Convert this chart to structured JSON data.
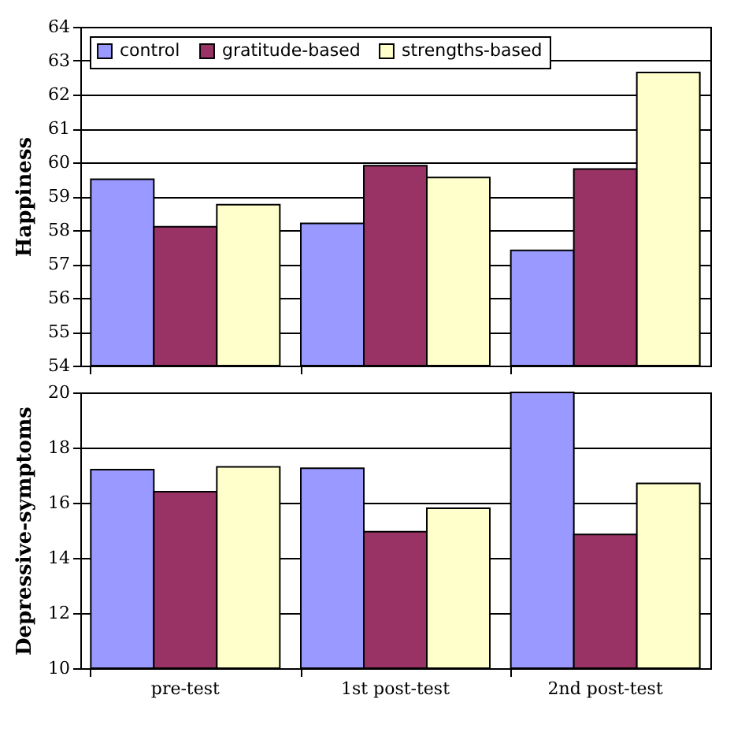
{
  "chart_data": [
    {
      "type": "bar",
      "ylabel": "Happiness",
      "categories": [
        null,
        null,
        null
      ],
      "series": [
        {
          "name": "control",
          "color": "#9999ff",
          "values": [
            59.5,
            58.2,
            57.4
          ]
        },
        {
          "name": "gratitude-based",
          "color": "#993366",
          "values": [
            58.1,
            59.9,
            59.8
          ]
        },
        {
          "name": "strengths-based",
          "color": "#ffffcc",
          "values": [
            58.75,
            59.55,
            62.65
          ]
        }
      ],
      "ylim": [
        54,
        64
      ],
      "yticks": [
        54,
        55,
        56,
        57,
        58,
        59,
        60,
        61,
        62,
        63,
        64
      ],
      "grid": "y",
      "legend": "top left",
      "tick_labels": "y"
    },
    {
      "type": "bar",
      "ylabel": "Depressive-symptoms",
      "categories": [
        "pre-test",
        "1st post-test",
        "2nd post-test"
      ],
      "series": [
        {
          "color": "#9999ff",
          "values": [
            17.2,
            17.25,
            20
          ]
        },
        {
          "color": "#993366",
          "values": [
            16.4,
            14.95,
            14.85
          ]
        },
        {
          "color": "#ffffcc",
          "values": [
            17.3,
            15.8,
            16.7
          ]
        }
      ],
      "ylim": [
        10,
        20
      ],
      "yticks": [
        10,
        12,
        14,
        16,
        18,
        20
      ],
      "grid": "y"
    }
  ]
}
